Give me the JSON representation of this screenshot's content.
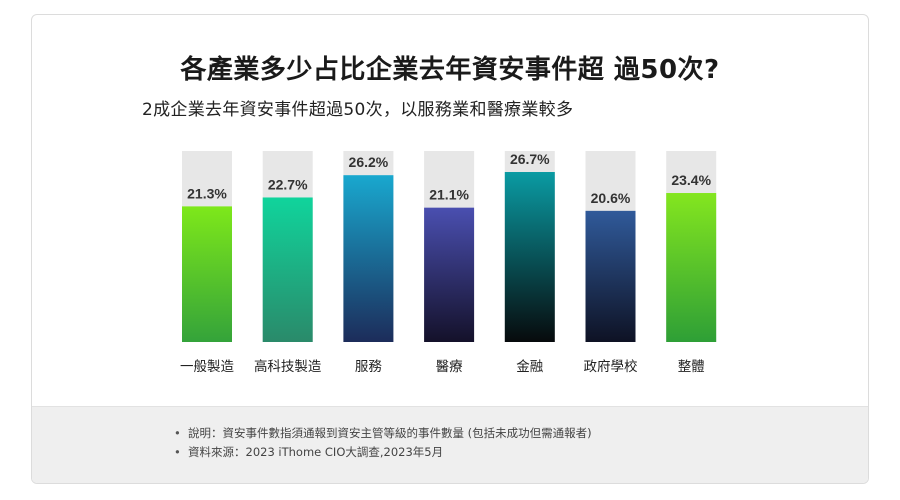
{
  "chart_data": {
    "type": "bar",
    "title": "各產業多少占比企業去年資安事件超 過50次?",
    "subtitle": "2成企業去年資安事件超過50次，以服務業和醫療業較多",
    "categories": [
      "一般製造",
      "高科技製造",
      "服務",
      "醫療",
      "金融",
      "政府學校",
      "整體"
    ],
    "values": [
      21.3,
      22.7,
      26.2,
      21.1,
      26.7,
      20.6,
      23.4
    ],
    "value_labels": [
      "21.3%",
      "22.7%",
      "26.2%",
      "21.1%",
      "26.7%",
      "20.6%",
      "23.4%"
    ],
    "ylim": [
      0,
      30
    ],
    "grid": false,
    "colors": {
      "track": "#e7e7e7",
      "bars": [
        [
          "#7ee81a",
          "#34a33a"
        ],
        [
          "#10d49c",
          "#2a8a6a"
        ],
        [
          "#19a8cf",
          "#1c2c5a"
        ],
        [
          "#4a4fb0",
          "#14112a"
        ],
        [
          "#0a9ba3",
          "#070a0c"
        ],
        [
          "#305a9a",
          "#0e1224"
        ],
        [
          "#84e61f",
          "#2e9f36"
        ]
      ]
    }
  },
  "notes": [
    "說明：資安事件數指須通報到資安主管等級的事件數量 (包括未成功但需通報者)",
    "資料來源：2023 iThome CIO大調查,2023年5月"
  ]
}
